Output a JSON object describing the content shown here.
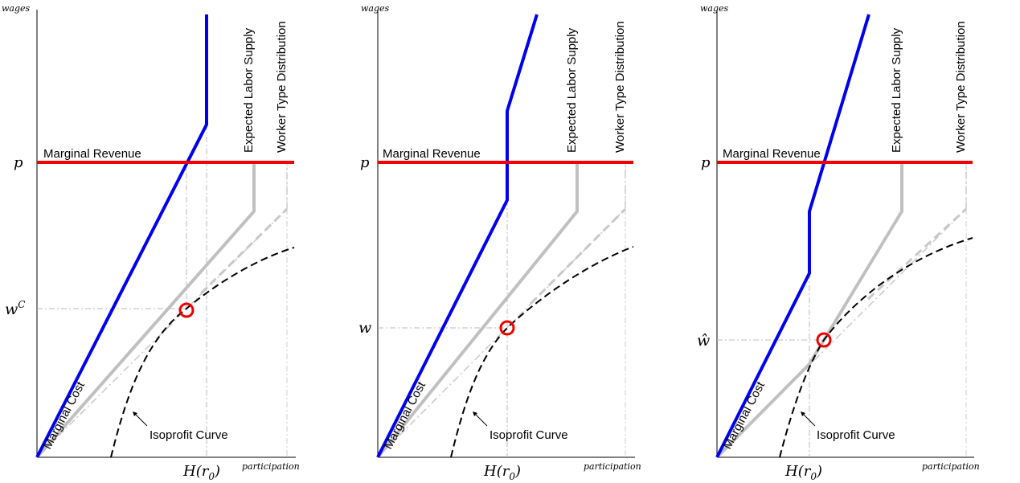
{
  "axis_words": {
    "y": "wages",
    "x": "participation"
  },
  "labels": {
    "marginal_revenue": "Marginal Revenue",
    "marginal_cost": "Marginal Cost",
    "expected_labor_supply": "Expected Labor Supply",
    "worker_type_distribution": "Worker Type Distribution",
    "isoprofit_curve": "Isoprofit Curve",
    "p_tick": "p",
    "h_tick": "H(r",
    "h_sub": "0",
    "h_close": ")"
  },
  "panels": [
    {
      "wage_label": "w",
      "wage_sup": "C"
    },
    {
      "wage_label": "w",
      "wage_sup": ""
    },
    {
      "wage_label": "ŵ",
      "wage_sup": ""
    }
  ],
  "colors": {
    "marginal_cost": "#0000ee",
    "marginal_revenue": "#ee0000",
    "supply": "#c0c0c0",
    "isoprofit": "#000000",
    "equilibrium": "#ee0000"
  }
}
